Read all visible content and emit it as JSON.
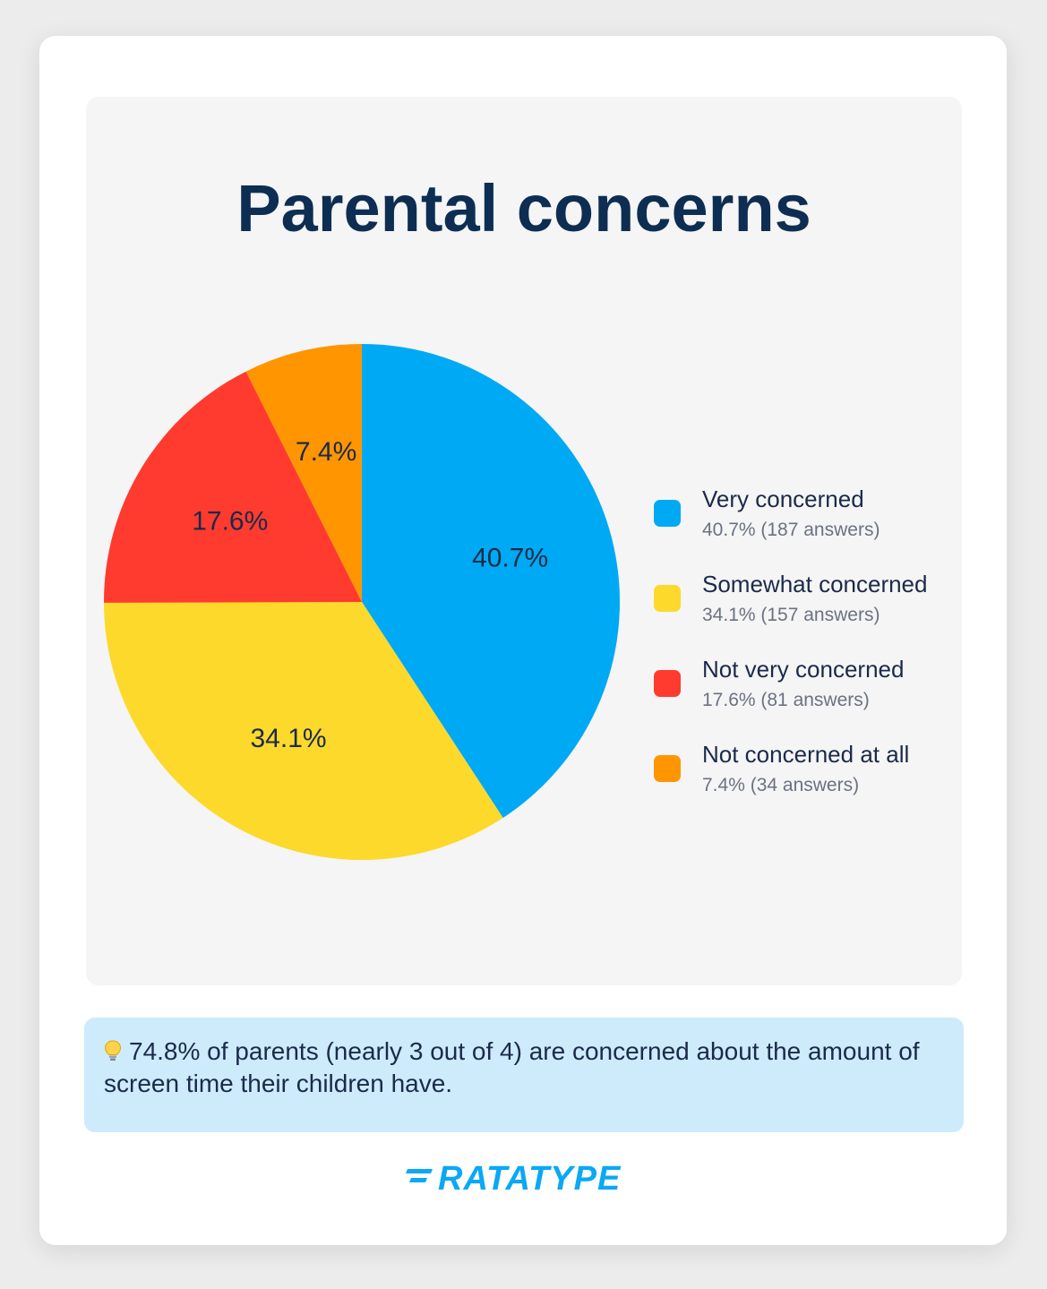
{
  "colors": {
    "very_concerned": "#00a9f4",
    "somewhat_concerned": "#fcd92b",
    "not_very_concerned": "#ff3b2f",
    "not_concerned_at_all": "#ff9500",
    "brand": "#0aa8f5"
  },
  "chart_data": {
    "type": "pie",
    "title": "Parental concerns",
    "categories": [
      "Very concerned",
      "Somewhat concerned",
      "Not very concerned",
      "Not concerned at all"
    ],
    "values": [
      40.7,
      34.1,
      17.6,
      7.4
    ],
    "slice_labels": [
      "40.7%",
      "34.1%",
      "17.6%",
      "7.4%"
    ],
    "answers": [
      187,
      157,
      81,
      34
    ],
    "legend_placement": "right",
    "legend": [
      {
        "label": "Very concerned",
        "detail": "40.7% (187 answers)",
        "color": "#00a9f4"
      },
      {
        "label": "Somewhat concerned",
        "detail": "34.1% (157 answers)",
        "color": "#fcd92b"
      },
      {
        "label": "Not very concerned",
        "detail": "17.6% (81 answers)",
        "color": "#ff3b2f"
      },
      {
        "label": "Not concerned at all",
        "detail": "7.4% (34 answers)",
        "color": "#ff9500"
      }
    ]
  },
  "insight": {
    "icon": "lightbulb-icon",
    "text": "74.8% of parents (nearly 3 out of 4) are concerned about the amount of screen time their children have."
  },
  "brand": {
    "logo_text": "RATATYPE"
  }
}
